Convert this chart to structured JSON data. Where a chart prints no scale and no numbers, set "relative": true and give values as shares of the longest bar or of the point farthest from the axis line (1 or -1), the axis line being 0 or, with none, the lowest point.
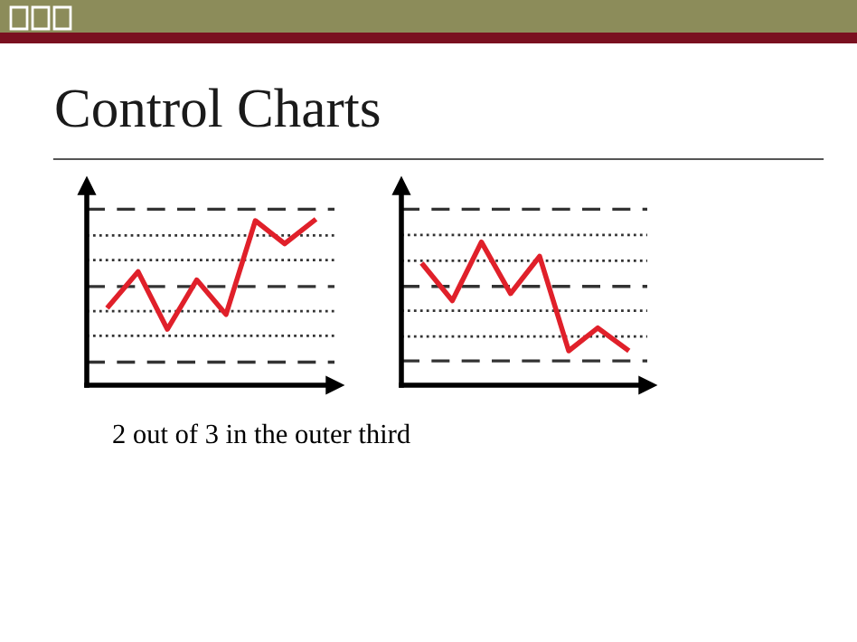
{
  "chart_data": [
    {
      "type": "line",
      "title": "Control Charts",
      "relative": true,
      "categories": [
        null,
        null,
        null,
        null,
        null,
        null,
        null,
        null
      ],
      "series": [
        {
          "color": "#e0202a",
          "values": [
            0.48,
            0.69,
            0.34,
            0.64,
            0.43,
            1,
            0.86,
            1
          ]
        }
      ],
      "ref_lines": [
        {
          "axis": "y",
          "value": 1.07,
          "line_style": "dashed"
        },
        {
          "axis": "y",
          "value": 0.91,
          "line_style": "dotted"
        },
        {
          "axis": "y",
          "value": 0.76,
          "line_style": "dotted"
        },
        {
          "axis": "y",
          "value": 0.6,
          "line_style": "dashed"
        },
        {
          "axis": "y",
          "value": 0.45,
          "line_style": "dotted"
        },
        {
          "axis": "y",
          "value": 0.3,
          "line_style": "dotted"
        },
        {
          "axis": "y",
          "value": 0.14,
          "line_style": "dashed"
        }
      ],
      "annotations": [
        "2 out of 3 in the outer third"
      ],
      "tick_labels": false
    },
    {
      "type": "line",
      "relative": true,
      "categories": [
        null,
        null,
        null,
        null,
        null,
        null,
        null,
        null
      ],
      "series": [
        {
          "color": "#e0202a",
          "values": [
            0.84,
            0.59,
            1,
            0.64,
            0.9,
            0.24,
            0.4,
            0.25
          ]
        }
      ],
      "ref_lines": [
        {
          "axis": "y",
          "value": 1.23,
          "line_style": "dashed"
        },
        {
          "axis": "y",
          "value": 1.05,
          "line_style": "dotted"
        },
        {
          "axis": "y",
          "value": 0.87,
          "line_style": "dotted"
        },
        {
          "axis": "y",
          "value": 0.69,
          "line_style": "dashed"
        },
        {
          "axis": "y",
          "value": 0.52,
          "line_style": "dotted"
        },
        {
          "axis": "y",
          "value": 0.34,
          "line_style": "dotted"
        },
        {
          "axis": "y",
          "value": 0.17,
          "line_style": "dashed"
        }
      ],
      "tick_labels": false
    }
  ]
}
